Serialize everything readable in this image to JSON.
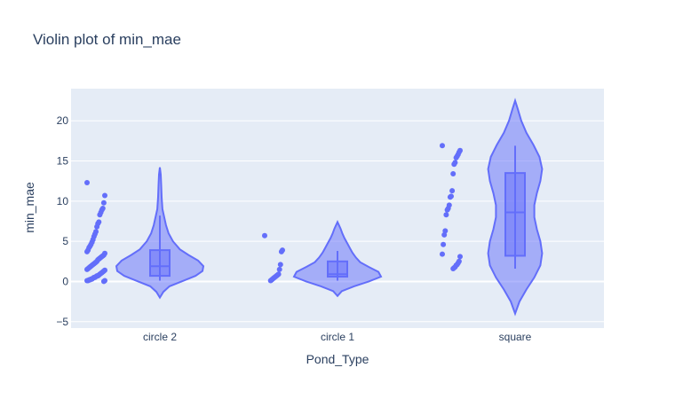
{
  "chart_data": {
    "type": "violin",
    "title": "Violin plot of min_mae",
    "xlabel": "Pond_Type",
    "ylabel": "min_mae",
    "categories": [
      "circle 2",
      "circle 1",
      "square"
    ],
    "yticks": [
      -5,
      0,
      5,
      10,
      15,
      20
    ],
    "ylim": [
      -5.8,
      24
    ],
    "grid": true,
    "legend": false,
    "colors": {
      "trace": "#636efa",
      "plot_bg": "#e5ecf6",
      "grid": "#ffffff",
      "text": "#2a3f5f"
    },
    "groups": [
      {
        "category": "circle 2",
        "box": {
          "min": 0.1,
          "q1": 0.7,
          "median": 1.9,
          "q3": 3.9,
          "max": 8.2
        },
        "density": [
          [
            -2.0,
            0.0
          ],
          [
            -1.3,
            0.08
          ],
          [
            -0.6,
            0.22
          ],
          [
            0.0,
            0.5
          ],
          [
            0.7,
            0.82
          ],
          [
            1.3,
            0.98
          ],
          [
            1.9,
            1.0
          ],
          [
            2.6,
            0.88
          ],
          [
            3.3,
            0.66
          ],
          [
            4.0,
            0.46
          ],
          [
            5.0,
            0.3
          ],
          [
            6.0,
            0.2
          ],
          [
            7.0,
            0.14
          ],
          [
            8.0,
            0.1
          ],
          [
            9.0,
            0.06
          ],
          [
            10.5,
            0.04
          ],
          [
            12.0,
            0.03
          ],
          [
            13.3,
            0.02
          ],
          [
            14.2,
            0.0
          ]
        ],
        "points": [
          12.3,
          10.7,
          9.8,
          9.1,
          8.9,
          8.6,
          8.3,
          7.4,
          7.2,
          6.8,
          6.2,
          5.9,
          5.6,
          5.2,
          4.9,
          4.6,
          4.4,
          4.2,
          3.9,
          3.7,
          3.5,
          3.3,
          3.2,
          3.1,
          3.0,
          2.9,
          2.8,
          2.7,
          2.5,
          2.4,
          2.3,
          2.2,
          2.1,
          2.0,
          1.9,
          1.8,
          1.7,
          1.6,
          1.5,
          1.4,
          1.3,
          1.2,
          1.1,
          1.0,
          0.9,
          0.8,
          0.7,
          0.7,
          0.6,
          0.5,
          0.5,
          0.4,
          0.3,
          0.3,
          0.2,
          0.2,
          0.1,
          0.1,
          0.1,
          0.0
        ]
      },
      {
        "category": "circle 1",
        "box": {
          "min": 0.1,
          "q1": 0.6,
          "median": 0.9,
          "q3": 2.5,
          "max": 3.8
        },
        "density": [
          [
            -1.8,
            0.0
          ],
          [
            -1.2,
            0.1
          ],
          [
            -0.6,
            0.38
          ],
          [
            0.0,
            0.72
          ],
          [
            0.6,
            1.0
          ],
          [
            1.2,
            0.94
          ],
          [
            1.8,
            0.72
          ],
          [
            2.4,
            0.52
          ],
          [
            3.0,
            0.42
          ],
          [
            3.6,
            0.34
          ],
          [
            4.2,
            0.28
          ],
          [
            4.8,
            0.22
          ],
          [
            5.4,
            0.16
          ],
          [
            6.0,
            0.11
          ],
          [
            6.6,
            0.07
          ],
          [
            7.4,
            0.0
          ]
        ],
        "points": [
          5.7,
          3.9,
          3.7,
          2.1,
          1.5,
          0.9,
          0.8,
          0.7,
          0.6,
          0.5,
          0.4,
          0.3,
          0.2,
          0.1
        ]
      },
      {
        "category": "square",
        "box": {
          "min": 1.6,
          "q1": 3.2,
          "median": 8.6,
          "q3": 13.5,
          "max": 16.9
        },
        "density": [
          [
            -4.0,
            0.0
          ],
          [
            -2.5,
            0.1
          ],
          [
            -1.0,
            0.26
          ],
          [
            0.5,
            0.44
          ],
          [
            2.0,
            0.58
          ],
          [
            3.5,
            0.62
          ],
          [
            5.0,
            0.58
          ],
          [
            6.5,
            0.5
          ],
          [
            8.0,
            0.44
          ],
          [
            9.5,
            0.44
          ],
          [
            11.0,
            0.5
          ],
          [
            12.5,
            0.58
          ],
          [
            14.0,
            0.62
          ],
          [
            15.5,
            0.56
          ],
          [
            17.0,
            0.42
          ],
          [
            18.5,
            0.26
          ],
          [
            20.0,
            0.14
          ],
          [
            21.5,
            0.06
          ],
          [
            22.5,
            0.0
          ]
        ],
        "points": [
          16.9,
          16.3,
          16.1,
          15.8,
          15.6,
          15.4,
          14.8,
          14.6,
          13.4,
          11.3,
          10.6,
          10.5,
          9.5,
          9.1,
          8.9,
          8.3,
          6.3,
          5.8,
          4.6,
          3.4,
          3.1,
          2.5,
          2.3,
          2.1,
          2.0,
          1.8,
          1.7,
          1.6
        ]
      }
    ]
  }
}
